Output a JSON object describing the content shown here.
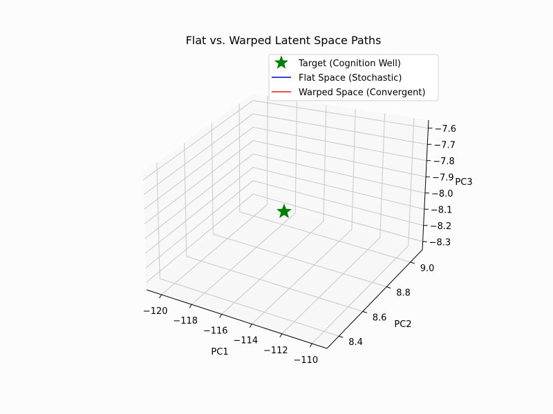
{
  "chart_data": {
    "type": "scatter",
    "projection": "3d",
    "title": "Flat vs. Warped Latent Space Paths",
    "xlabel": "PC1",
    "ylabel": "PC2",
    "zlabel": "PC3",
    "xticks": [
      "−120",
      "−118",
      "−116",
      "−114",
      "−112",
      "−110"
    ],
    "yticks": [
      "8.4",
      "8.6",
      "8.8",
      "9.0"
    ],
    "zticks": [
      "−7.6",
      "−7.7",
      "−7.8",
      "−7.9",
      "−8.0",
      "−8.1",
      "−8.2",
      "−8.3"
    ],
    "xlim": [
      -121,
      -109
    ],
    "ylim": [
      8.3,
      9.1
    ],
    "zlim": [
      -8.35,
      -7.55
    ],
    "grid": true,
    "legend_position": "top-right",
    "legend": [
      {
        "label": "Target (Cognition Well)",
        "marker": "star",
        "color": "#008000"
      },
      {
        "label": "Flat Space (Stochastic)",
        "marker": "line",
        "color": "#0000cc"
      },
      {
        "label": "Warped Space (Convergent)",
        "marker": "line",
        "color": "#ee1111"
      }
    ],
    "series": [
      {
        "name": "Target (Cognition Well)",
        "marker": "star",
        "color": "#008000",
        "points": [
          {
            "x": -115.2,
            "y": 8.7,
            "z": -7.95
          }
        ]
      },
      {
        "name": "Flat Space (Stochastic)",
        "color": "#0000cc",
        "points": []
      },
      {
        "name": "Warped Space (Convergent)",
        "color": "#ee1111",
        "points": []
      }
    ]
  }
}
